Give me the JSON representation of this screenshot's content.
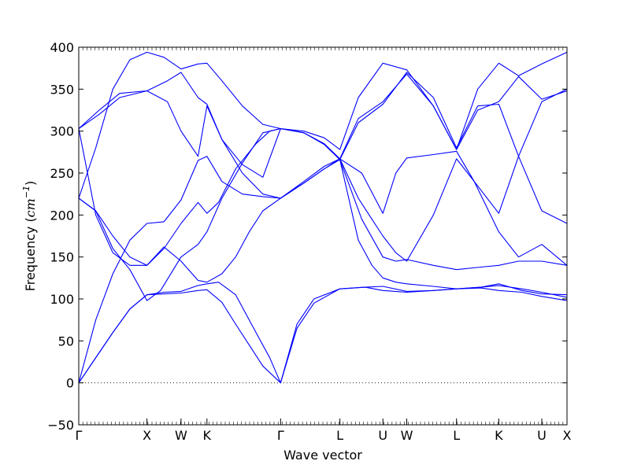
{
  "chart_data": {
    "type": "line",
    "title": "",
    "xlabel": "Wave vector",
    "ylabel": "Frequency",
    "ylabel_unit": "cm",
    "ylabel_unit_exp": "−1",
    "ylim": [
      -50,
      400
    ],
    "yticks": [
      -50,
      0,
      50,
      100,
      150,
      200,
      250,
      300,
      350,
      400
    ],
    "xlim": [
      0,
      7.16
    ],
    "zero_line": true,
    "line_color": "#0000ff",
    "high_symmetry_points": [
      {
        "label": "Γ",
        "x": 0
      },
      {
        "label": "X",
        "x": 1.0
      },
      {
        "label": "W",
        "x": 1.5
      },
      {
        "label": "K",
        "x": 1.88
      },
      {
        "label": "Γ",
        "x": 2.96
      },
      {
        "label": "L",
        "x": 3.83
      },
      {
        "label": "U",
        "x": 4.46
      },
      {
        "label": "W",
        "x": 4.81
      },
      {
        "label": "L",
        "x": 5.54
      },
      {
        "label": "K",
        "x": 6.16
      },
      {
        "label": "U",
        "x": 6.79
      },
      {
        "label": "X",
        "x": 7.16
      }
    ],
    "series": [
      {
        "values": [
          [
            0,
            0
          ],
          [
            0.25,
            30
          ],
          [
            0.5,
            60
          ],
          [
            0.75,
            88
          ],
          [
            1.0,
            105
          ],
          [
            1.25,
            106
          ],
          [
            1.5,
            107
          ],
          [
            1.75,
            110
          ],
          [
            1.88,
            111
          ],
          [
            2.1,
            96
          ],
          [
            2.3,
            70
          ],
          [
            2.5,
            45
          ],
          [
            2.7,
            20
          ],
          [
            2.96,
            0
          ],
          [
            3.2,
            65
          ],
          [
            3.45,
            95
          ],
          [
            3.83,
            112
          ],
          [
            4.2,
            114
          ],
          [
            4.46,
            110
          ],
          [
            4.81,
            108
          ],
          [
            5.2,
            110
          ],
          [
            5.54,
            112
          ],
          [
            5.9,
            113
          ],
          [
            6.16,
            110
          ],
          [
            6.5,
            108
          ],
          [
            6.79,
            103
          ],
          [
            7.16,
            98
          ]
        ]
      },
      {
        "values": [
          [
            0,
            0
          ],
          [
            0.25,
            30
          ],
          [
            0.5,
            60
          ],
          [
            0.75,
            88
          ],
          [
            1.0,
            105
          ],
          [
            1.25,
            108
          ],
          [
            1.5,
            109
          ],
          [
            1.75,
            116
          ],
          [
            1.88,
            118
          ],
          [
            2.05,
            120
          ],
          [
            2.3,
            105
          ],
          [
            2.6,
            60
          ],
          [
            2.8,
            30
          ],
          [
            2.96,
            0
          ],
          [
            3.2,
            70
          ],
          [
            3.45,
            100
          ],
          [
            3.83,
            112
          ],
          [
            4.2,
            114
          ],
          [
            4.46,
            115
          ],
          [
            4.81,
            109
          ],
          [
            5.2,
            110
          ],
          [
            5.54,
            112
          ],
          [
            5.9,
            114
          ],
          [
            6.16,
            116
          ],
          [
            6.5,
            112
          ],
          [
            6.79,
            108
          ],
          [
            7.16,
            102
          ]
        ]
      },
      {
        "values": [
          [
            0,
            0
          ],
          [
            0.25,
            75
          ],
          [
            0.5,
            130
          ],
          [
            0.75,
            170
          ],
          [
            1.0,
            190
          ],
          [
            1.25,
            192
          ],
          [
            1.5,
            218
          ],
          [
            1.75,
            265
          ],
          [
            1.88,
            270
          ],
          [
            2.1,
            240
          ],
          [
            2.4,
            225
          ],
          [
            2.7,
            222
          ],
          [
            2.96,
            220
          ],
          [
            3.3,
            240
          ],
          [
            3.6,
            258
          ],
          [
            3.83,
            267
          ],
          [
            4.15,
            250
          ],
          [
            4.46,
            202
          ],
          [
            4.65,
            250
          ],
          [
            4.81,
            268
          ],
          [
            5.2,
            272
          ],
          [
            5.54,
            276
          ],
          [
            5.8,
            240
          ],
          [
            6.16,
            202
          ],
          [
            6.45,
            270
          ],
          [
            6.79,
            335
          ],
          [
            7.16,
            350
          ]
        ]
      },
      {
        "values": [
          [
            0,
            220
          ],
          [
            0.25,
            205
          ],
          [
            0.5,
            160
          ],
          [
            0.75,
            135
          ],
          [
            1.0,
            98
          ],
          [
            1.2,
            110
          ],
          [
            1.5,
            150
          ],
          [
            1.75,
            165
          ],
          [
            1.88,
            180
          ],
          [
            2.1,
            220
          ],
          [
            2.4,
            262
          ],
          [
            2.7,
            298
          ],
          [
            2.96,
            303
          ],
          [
            3.3,
            298
          ],
          [
            3.6,
            285
          ],
          [
            3.83,
            267
          ],
          [
            4.1,
            220
          ],
          [
            4.3,
            195
          ],
          [
            4.46,
            175
          ],
          [
            4.65,
            155
          ],
          [
            4.81,
            145
          ],
          [
            5.2,
            200
          ],
          [
            5.54,
            267
          ],
          [
            5.8,
            240
          ],
          [
            6.16,
            180
          ],
          [
            6.45,
            150
          ],
          [
            6.79,
            165
          ],
          [
            7.16,
            140
          ]
        ]
      },
      {
        "values": [
          [
            0,
            220
          ],
          [
            0.25,
            205
          ],
          [
            0.5,
            175
          ],
          [
            0.75,
            150
          ],
          [
            1.0,
            140
          ],
          [
            1.25,
            162
          ],
          [
            1.5,
            145
          ],
          [
            1.75,
            122
          ],
          [
            1.88,
            120
          ],
          [
            2.1,
            130
          ],
          [
            2.3,
            150
          ],
          [
            2.5,
            180
          ],
          [
            2.7,
            205
          ],
          [
            2.96,
            220
          ],
          [
            3.3,
            238
          ],
          [
            3.6,
            255
          ],
          [
            3.83,
            266
          ],
          [
            4.15,
            195
          ],
          [
            4.46,
            150
          ],
          [
            4.65,
            145
          ],
          [
            4.81,
            147
          ],
          [
            5.2,
            140
          ],
          [
            5.54,
            135
          ],
          [
            5.9,
            138
          ],
          [
            6.16,
            140
          ],
          [
            6.45,
            145
          ],
          [
            6.79,
            145
          ],
          [
            7.16,
            140
          ]
        ]
      },
      {
        "values": [
          [
            0,
            303
          ],
          [
            0.25,
            200
          ],
          [
            0.5,
            155
          ],
          [
            0.75,
            140
          ],
          [
            1.0,
            140
          ],
          [
            1.25,
            160
          ],
          [
            1.5,
            190
          ],
          [
            1.75,
            215
          ],
          [
            1.88,
            202
          ],
          [
            2.05,
            215
          ],
          [
            2.3,
            255
          ],
          [
            2.6,
            285
          ],
          [
            2.8,
            300
          ],
          [
            2.96,
            303
          ],
          [
            3.3,
            298
          ],
          [
            3.6,
            284
          ],
          [
            3.83,
            266
          ],
          [
            4.1,
            170
          ],
          [
            4.3,
            140
          ],
          [
            4.46,
            125
          ],
          [
            4.65,
            120
          ],
          [
            4.81,
            118
          ],
          [
            5.2,
            115
          ],
          [
            5.54,
            112
          ],
          [
            5.9,
            114
          ],
          [
            6.16,
            118
          ],
          [
            6.5,
            110
          ],
          [
            6.79,
            106
          ],
          [
            7.16,
            105
          ]
        ]
      },
      {
        "values": [
          [
            0,
            303
          ],
          [
            0.3,
            325
          ],
          [
            0.6,
            345
          ],
          [
            1.0,
            348
          ],
          [
            1.3,
            335
          ],
          [
            1.5,
            300
          ],
          [
            1.75,
            270
          ],
          [
            1.88,
            330
          ],
          [
            2.1,
            290
          ],
          [
            2.4,
            250
          ],
          [
            2.7,
            225
          ],
          [
            2.96,
            220
          ],
          [
            3.3,
            238
          ],
          [
            3.6,
            255
          ],
          [
            3.83,
            267
          ],
          [
            4.1,
            315
          ],
          [
            4.46,
            335
          ],
          [
            4.81,
            368
          ],
          [
            5.2,
            330
          ],
          [
            5.54,
            278
          ],
          [
            5.85,
            325
          ],
          [
            6.16,
            335
          ],
          [
            6.45,
            365
          ],
          [
            6.79,
            338
          ],
          [
            7.16,
            348
          ]
        ]
      },
      {
        "values": [
          [
            0,
            303
          ],
          [
            0.3,
            320
          ],
          [
            0.6,
            340
          ],
          [
            1.0,
            348
          ],
          [
            1.3,
            360
          ],
          [
            1.5,
            370
          ],
          [
            1.75,
            340
          ],
          [
            1.88,
            332
          ],
          [
            2.1,
            290
          ],
          [
            2.4,
            260
          ],
          [
            2.7,
            245
          ],
          [
            2.96,
            303
          ],
          [
            3.3,
            298
          ],
          [
            3.6,
            285
          ],
          [
            3.83,
            266
          ],
          [
            4.1,
            310
          ],
          [
            4.46,
            332
          ],
          [
            4.81,
            370
          ],
          [
            5.2,
            340
          ],
          [
            5.54,
            280
          ],
          [
            5.85,
            330
          ],
          [
            6.16,
            332
          ],
          [
            6.45,
            270
          ],
          [
            6.79,
            205
          ],
          [
            7.16,
            190
          ]
        ]
      },
      {
        "values": [
          [
            0,
            220
          ],
          [
            0.25,
            280
          ],
          [
            0.5,
            350
          ],
          [
            0.75,
            385
          ],
          [
            1.0,
            394
          ],
          [
            1.25,
            388
          ],
          [
            1.5,
            374
          ],
          [
            1.75,
            380
          ],
          [
            1.88,
            381
          ],
          [
            2.1,
            360
          ],
          [
            2.4,
            330
          ],
          [
            2.7,
            308
          ],
          [
            2.96,
            303
          ],
          [
            3.3,
            300
          ],
          [
            3.6,
            292
          ],
          [
            3.83,
            278
          ],
          [
            4.1,
            340
          ],
          [
            4.46,
            381
          ],
          [
            4.81,
            373
          ],
          [
            5.2,
            330
          ],
          [
            5.54,
            278
          ],
          [
            5.85,
            350
          ],
          [
            6.16,
            381
          ],
          [
            6.45,
            366
          ],
          [
            6.79,
            380
          ],
          [
            7.16,
            394
          ]
        ]
      }
    ]
  }
}
